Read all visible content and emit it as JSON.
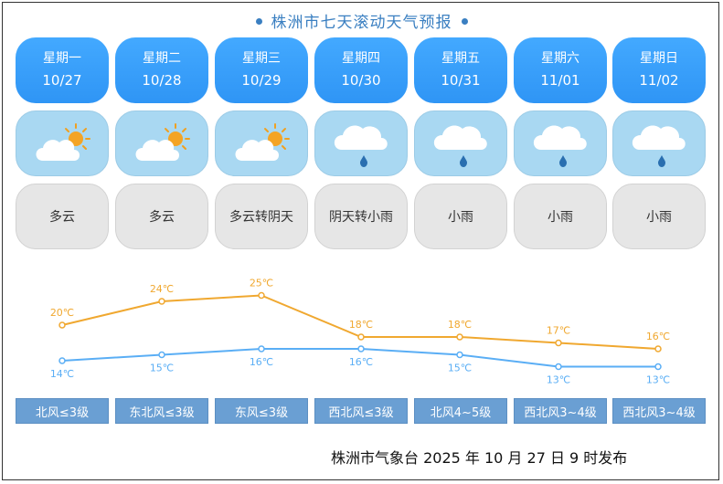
{
  "title": "株洲市七天滚动天气预报",
  "days": [
    {
      "name": "星期一",
      "date": "10/27",
      "weather": "多云",
      "icon": "partly-cloudy-icon",
      "high": 20,
      "low": 14,
      "high_label": "20℃",
      "low_label": "14℃",
      "wind": "北风≤3级"
    },
    {
      "name": "星期二",
      "date": "10/28",
      "weather": "多云",
      "icon": "partly-cloudy-icon",
      "high": 24,
      "low": 15,
      "high_label": "24℃",
      "low_label": "15℃",
      "wind": "东北风≤3级"
    },
    {
      "name": "星期三",
      "date": "10/29",
      "weather": "多云转阴天",
      "icon": "partly-cloudy-icon",
      "high": 25,
      "low": 16,
      "high_label": "25℃",
      "low_label": "16℃",
      "wind": "东风≤3级"
    },
    {
      "name": "星期四",
      "date": "10/30",
      "weather": "阴天转小雨",
      "icon": "rain-icon",
      "high": 18,
      "low": 16,
      "high_label": "18℃",
      "low_label": "16℃",
      "wind": "西北风≤3级"
    },
    {
      "name": "星期五",
      "date": "10/31",
      "weather": "小雨",
      "icon": "rain-icon",
      "high": 18,
      "low": 15,
      "high_label": "18℃",
      "low_label": "15℃",
      "wind": "北风4~5级"
    },
    {
      "name": "星期六",
      "date": "11/01",
      "weather": "小雨",
      "icon": "rain-icon",
      "high": 17,
      "low": 13,
      "high_label": "17℃",
      "low_label": "13℃",
      "wind": "西北风3~4级"
    },
    {
      "name": "星期日",
      "date": "11/02",
      "weather": "小雨",
      "icon": "rain-icon",
      "high": 16,
      "low": 13,
      "high_label": "16℃",
      "low_label": "13℃",
      "wind": "西北风3~4级"
    }
  ],
  "chart_data": {
    "type": "line",
    "categories": [
      "10/27",
      "10/28",
      "10/29",
      "10/30",
      "10/31",
      "11/01",
      "11/02"
    ],
    "series": [
      {
        "values": [
          20,
          24,
          25,
          18,
          18,
          17,
          16
        ],
        "color": "#f0a830"
      },
      {
        "values": [
          14,
          15,
          16,
          16,
          15,
          13,
          13
        ],
        "color": "#5aaef5"
      }
    ],
    "unit": "℃",
    "title": "株洲市七天滚动天气预报",
    "grid": false
  },
  "footer": "株洲市气象台 2025 年 10 月 27 日 9 时发布"
}
